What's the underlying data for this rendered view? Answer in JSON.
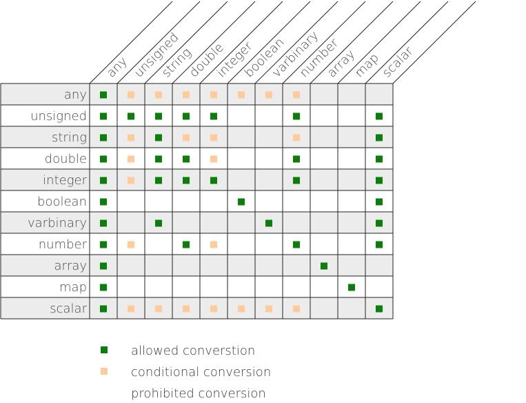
{
  "colors": {
    "allowed": "#0a7f0a",
    "conditional": "#ffcc99",
    "row_shade": "#ececec",
    "grid": "#222222"
  },
  "headers": [
    "any",
    "unsigned",
    "string",
    "double",
    "integer",
    "boolean",
    "varbinary",
    "number",
    "array",
    "map",
    "scalar"
  ],
  "rows": [
    {
      "label": "any",
      "cells": [
        "A",
        "C",
        "C",
        "C",
        "C",
        "C",
        "C",
        "C",
        "",
        "",
        ""
      ]
    },
    {
      "label": "unsigned",
      "cells": [
        "A",
        "A",
        "A",
        "A",
        "A",
        "",
        "",
        "A",
        "",
        "",
        "A"
      ]
    },
    {
      "label": "string",
      "cells": [
        "A",
        "C",
        "A",
        "C",
        "C",
        "",
        "",
        "C",
        "",
        "",
        "A"
      ]
    },
    {
      "label": "double",
      "cells": [
        "A",
        "C",
        "A",
        "A",
        "C",
        "",
        "",
        "A",
        "",
        "",
        "A"
      ]
    },
    {
      "label": "integer",
      "cells": [
        "A",
        "C",
        "A",
        "A",
        "A",
        "",
        "",
        "A",
        "",
        "",
        "A"
      ]
    },
    {
      "label": "boolean",
      "cells": [
        "A",
        "",
        "",
        "",
        "",
        "A",
        "",
        "",
        "",
        "",
        "A"
      ]
    },
    {
      "label": "varbinary",
      "cells": [
        "A",
        "",
        "A",
        "",
        "",
        "",
        "A",
        "",
        "",
        "",
        "A"
      ]
    },
    {
      "label": "number",
      "cells": [
        "A",
        "C",
        "",
        "A",
        "C",
        "",
        "",
        "A",
        "",
        "",
        "A"
      ]
    },
    {
      "label": "array",
      "cells": [
        "A",
        "",
        "",
        "",
        "",
        "",
        "",
        "",
        "A",
        "",
        ""
      ]
    },
    {
      "label": "map",
      "cells": [
        "A",
        "",
        "",
        "",
        "",
        "",
        "",
        "",
        "",
        "A",
        ""
      ]
    },
    {
      "label": "scalar",
      "cells": [
        "A",
        "C",
        "C",
        "C",
        "C",
        "C",
        "C",
        "C",
        "",
        "",
        "A"
      ]
    }
  ],
  "legend": [
    {
      "key": "A",
      "text": "allowed converstion"
    },
    {
      "key": "C",
      "text": "conditional conversion"
    },
    {
      "key": "",
      "text": "prohibited conversion"
    }
  ]
}
